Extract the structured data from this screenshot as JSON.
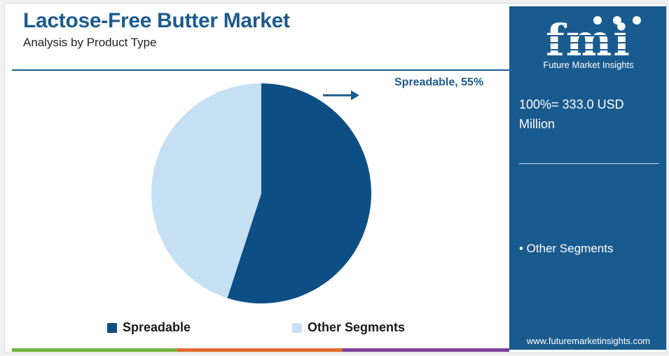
{
  "header": {
    "title": "Lactose-Free Butter Market",
    "subtitle": "Analysis by Product Type"
  },
  "chart_data": {
    "type": "pie",
    "slices": [
      {
        "name": "Spreadable",
        "value": 55,
        "color": "#0d4f85"
      },
      {
        "name": "Other Segments",
        "value": 45,
        "color": "#c6e0f3"
      }
    ],
    "callout": "Spreadable, 55%",
    "legend": [
      "Spreadable",
      "Other Segments"
    ],
    "legend_placement": "bottom"
  },
  "panel": {
    "logo_text": "fmi",
    "logo_subtitle": "Future Market Insights",
    "total": "100%= 333.0 USD Million",
    "segment_item": "• Other Segments",
    "website": "www.futuremarketinsights.com"
  },
  "colors": {
    "brand": "#1c5b8e",
    "panel_bg": "#1a5b8f",
    "accent_bar": [
      "#6fb23a",
      "#e06a2b",
      "#7b3f98"
    ]
  }
}
